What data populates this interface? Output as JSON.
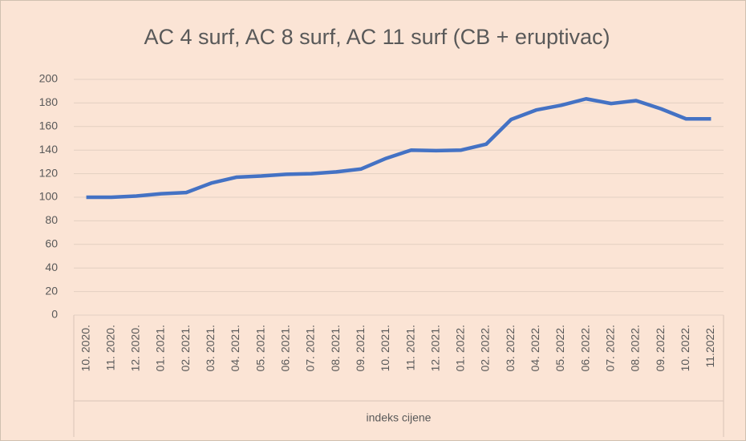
{
  "chart_data": {
    "type": "line",
    "title": "AC 4 surf, AC 8 surf, AC 11 surf (CB + eruptivac)",
    "categories": [
      "10. 2020.",
      "11. 2020.",
      "12. 2020.",
      "01. 2021.",
      "02. 2021.",
      "03. 2021.",
      "04. 2021.",
      "05. 2021.",
      "06. 2021.",
      "07. 2021.",
      "08. 2021.",
      "09. 2021.",
      "10. 2021.",
      "11. 2021.",
      "12. 2021.",
      "01. 2022.",
      "02. 2022.",
      "03. 2022.",
      "04. 2022.",
      "05. 2022.",
      "06. 2022.",
      "07. 2022.",
      "08. 2022.",
      "09. 2022.",
      "10. 2022.",
      "11.2022."
    ],
    "series": [
      {
        "name": "indeks cijene",
        "color": "#4472c4",
        "values": [
          100,
          100,
          101,
          103,
          104,
          112,
          117,
          118,
          119.5,
          120,
          121.5,
          124,
          133,
          140,
          139.5,
          140,
          145,
          166,
          174,
          178,
          183.5,
          179.5,
          182,
          175,
          166.5,
          166.5
        ]
      }
    ],
    "ylim": [
      0,
      200
    ],
    "yticks": [
      0,
      20,
      40,
      60,
      80,
      100,
      120,
      140,
      160,
      180,
      200
    ],
    "grid": true
  }
}
